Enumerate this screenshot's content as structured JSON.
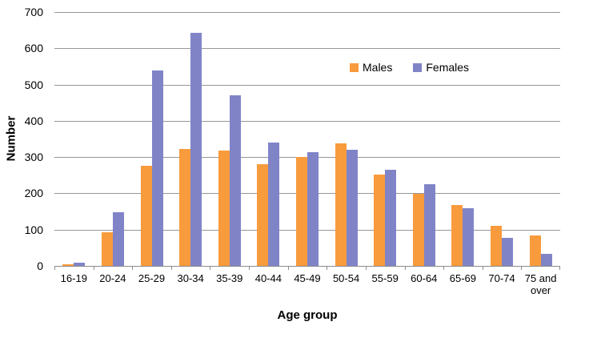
{
  "chart_data": {
    "type": "bar",
    "title": "",
    "xlabel": "Age group",
    "ylabel": "Number",
    "ylim": [
      0,
      700
    ],
    "ytick_step": 100,
    "grid": true,
    "legend_position": "top-right-inside",
    "categories": [
      "16-19",
      "20-24",
      "25-29",
      "30-34",
      "35-39",
      "40-44",
      "45-49",
      "50-54",
      "55-59",
      "60-64",
      "65-69",
      "70-74",
      "75 and over"
    ],
    "series": [
      {
        "name": "Males",
        "color": "#F89B3C",
        "values": [
          5,
          92,
          276,
          322,
          318,
          281,
          300,
          338,
          252,
          198,
          167,
          111,
          85
        ]
      },
      {
        "name": "Females",
        "color": "#8084C7",
        "values": [
          9,
          149,
          539,
          642,
          470,
          340,
          313,
          320,
          264,
          225,
          160,
          78,
          33
        ]
      }
    ]
  },
  "colors": {
    "gridline": "#969696",
    "axis": "#8C8C8C",
    "text": "#000000",
    "background": "#FFFFFF"
  }
}
